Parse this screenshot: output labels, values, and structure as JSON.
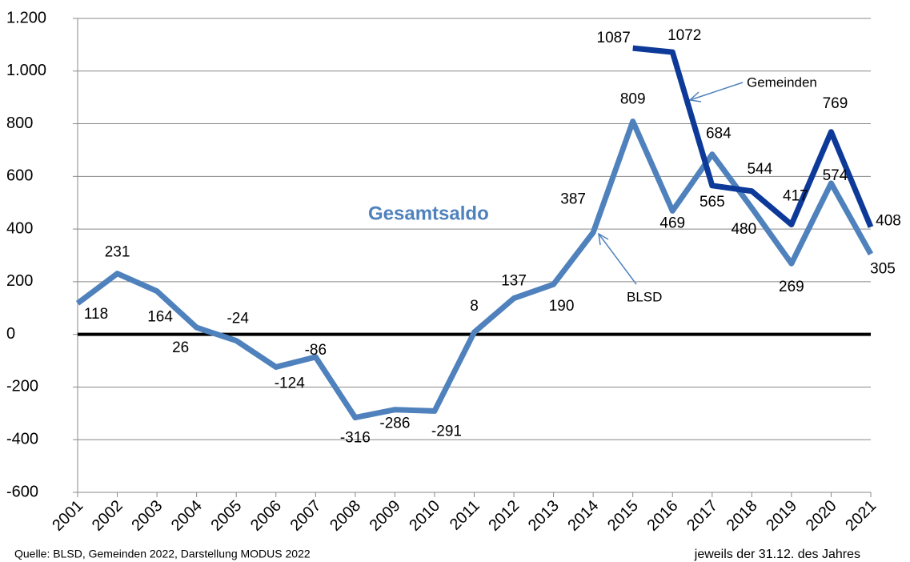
{
  "chart_data": {
    "type": "line",
    "categories": [
      "2001",
      "2002",
      "2003",
      "2004",
      "2005",
      "2006",
      "2007",
      "2008",
      "2009",
      "2010",
      "2011",
      "2012",
      "2013",
      "2014",
      "2015",
      "2016",
      "2017",
      "2018",
      "2019",
      "2020",
      "2021"
    ],
    "series": [
      {
        "name": "BLSD",
        "color": "#4f81bd",
        "values": [
          118,
          231,
          164,
          26,
          -24,
          -124,
          -86,
          -316,
          -286,
          -291,
          8,
          137,
          190,
          387,
          809,
          469,
          684,
          480,
          269,
          574,
          305
        ]
      },
      {
        "name": "Gemeinden",
        "color": "#0d3a99",
        "values": [
          null,
          null,
          null,
          null,
          null,
          null,
          null,
          null,
          null,
          null,
          null,
          null,
          null,
          null,
          1087,
          1072,
          565,
          544,
          417,
          769,
          408
        ]
      }
    ],
    "ylim": [
      -600,
      1200
    ],
    "yticks": [
      -600,
      -400,
      -200,
      0,
      200,
      400,
      600,
      800,
      {
        "value": 1000,
        "label": "1.000"
      },
      {
        "value": 1200,
        "label": "1.200"
      }
    ],
    "grid": true,
    "annotations": [
      "Gesamtsaldo"
    ],
    "source": "Quelle:  BLSD, Gemeinden  2022, Darstellung  MODUS  2022",
    "note": "jeweils der 31.12. des Jahres"
  }
}
